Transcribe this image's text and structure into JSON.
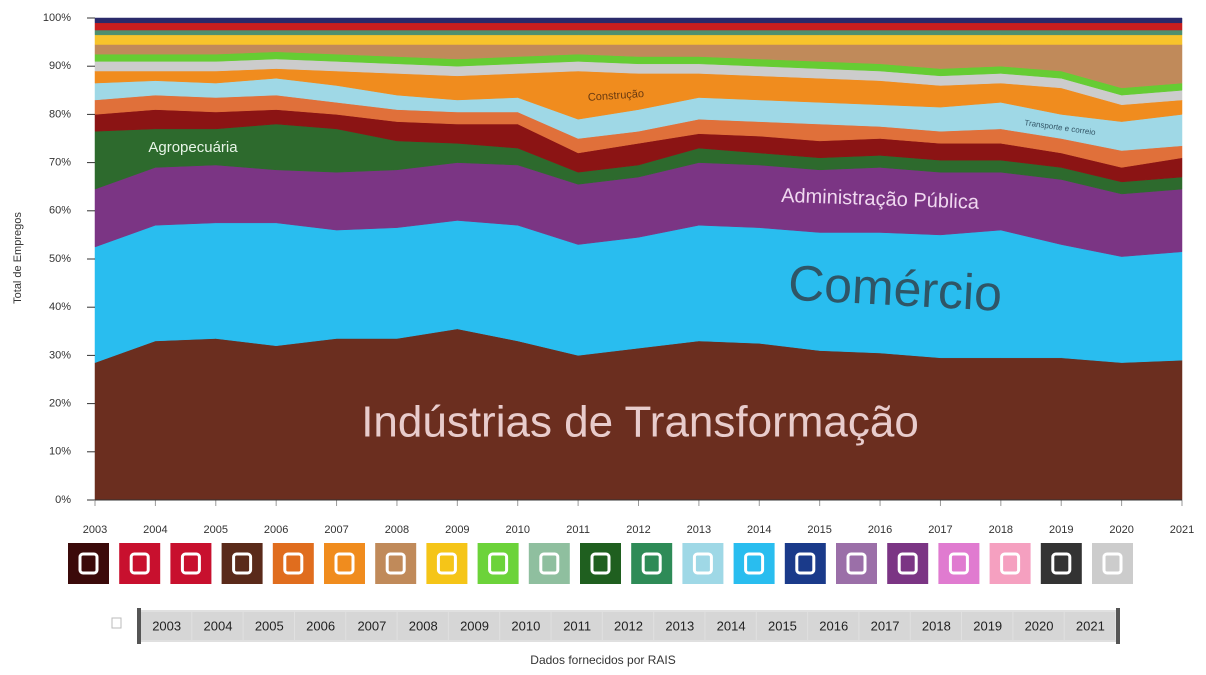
{
  "chart_data": {
    "type": "stacked_area",
    "y_axis_label": "Total de Empregos",
    "source": "Dados fornecidos por RAIS",
    "x": [
      2003,
      2004,
      2005,
      2006,
      2007,
      2008,
      2009,
      2010,
      2011,
      2012,
      2013,
      2014,
      2015,
      2016,
      2017,
      2018,
      2019,
      2020,
      2021
    ],
    "xlim": [
      2003,
      2021
    ],
    "xticks": [
      2003,
      2004,
      2005,
      2006,
      2007,
      2008,
      2009,
      2010,
      2011,
      2012,
      2013,
      2014,
      2015,
      2016,
      2017,
      2018,
      2019,
      2020,
      2021
    ],
    "ylim": [
      0,
      100
    ],
    "yticks": [
      {
        "value": 0,
        "label": "0%"
      },
      {
        "value": 10,
        "label": "10%"
      },
      {
        "value": 20,
        "label": "20%"
      },
      {
        "value": 30,
        "label": "30%"
      },
      {
        "value": 40,
        "label": "40%"
      },
      {
        "value": 50,
        "label": "50%"
      },
      {
        "value": 60,
        "label": "60%"
      },
      {
        "value": 70,
        "label": "70%"
      },
      {
        "value": 80,
        "label": "80%"
      },
      {
        "value": 90,
        "label": "90%"
      },
      {
        "value": 100,
        "label": "100%"
      }
    ],
    "series": [
      {
        "name": "Indústrias de Transformação",
        "color": "#6b2e1f",
        "values": [
          28.5,
          33,
          33.5,
          32,
          33.5,
          33.5,
          35.5,
          33,
          30,
          31.5,
          33,
          32.5,
          31,
          30.5,
          29.5,
          29.5,
          29.5,
          28.5,
          29
        ]
      },
      {
        "name": "Comércio",
        "color": "#29bdef",
        "values": [
          24,
          24,
          24,
          25.5,
          22.5,
          23,
          22.5,
          24,
          23,
          23,
          24,
          24,
          24.5,
          25,
          25.5,
          26.5,
          23.5,
          22,
          22.5
        ]
      },
      {
        "name": "Administração Pública",
        "color": "#7b3584",
        "values": [
          12,
          12,
          12,
          11,
          12,
          12,
          12,
          12.5,
          12.5,
          12.5,
          13,
          13,
          13,
          13.5,
          13,
          12,
          13.5,
          13,
          13
        ]
      },
      {
        "name": "Agropecuária",
        "color": "#2d6a2d",
        "values": [
          12,
          8,
          7.5,
          9.5,
          9,
          6,
          4,
          3.5,
          2.5,
          2.5,
          3,
          2.5,
          2.5,
          2.5,
          2.5,
          2.5,
          2.5,
          2.5,
          2.5
        ]
      },
      {
        "color": "#8b1414",
        "values": [
          3.5,
          4,
          3.5,
          3,
          3,
          4,
          4,
          5,
          4,
          4.5,
          3,
          3.5,
          3.5,
          3.5,
          3.5,
          3.5,
          3,
          3,
          4
        ]
      },
      {
        "color": "#e0703a",
        "values": [
          3,
          3,
          3,
          3,
          2.5,
          2.5,
          2.5,
          2.5,
          3,
          2.5,
          3,
          3,
          3.5,
          2.5,
          2.5,
          3,
          3,
          3.5,
          2.5
        ]
      },
      {
        "name": "Transporte e correio",
        "color": "#9fd8e6",
        "values": [
          3.5,
          3,
          3,
          3.5,
          3.5,
          3,
          2.5,
          3,
          4,
          4.5,
          4.5,
          4.5,
          4.5,
          4.5,
          5,
          5.5,
          5,
          6,
          6.5
        ]
      },
      {
        "name": "Construção",
        "color": "#f08c1e",
        "values": [
          2.5,
          2,
          2.5,
          2,
          3,
          4.5,
          5,
          5,
          10,
          7.5,
          5,
          5,
          5,
          5,
          4.5,
          4,
          5.5,
          3.5,
          3
        ]
      },
      {
        "color": "#cccccc",
        "values": [
          2,
          2,
          2,
          2,
          2,
          2,
          2,
          2,
          2,
          2,
          2,
          2,
          2,
          2,
          2,
          2,
          2,
          2,
          2
        ]
      },
      {
        "color": "#66cc33",
        "values": [
          1.5,
          1.5,
          1.5,
          1.5,
          1.5,
          1.5,
          1.5,
          1.5,
          1.5,
          1.5,
          1.5,
          1.5,
          1.5,
          1.5,
          1.5,
          1.5,
          1.5,
          1.5,
          1.5
        ]
      },
      {
        "color": "#c08a5a",
        "values": [
          2,
          2,
          2,
          1.5,
          2,
          2.5,
          3,
          2.5,
          2,
          2.5,
          2.5,
          3,
          3.5,
          4,
          5,
          4.5,
          5.5,
          9,
          8
        ]
      },
      {
        "color": "#f7c42b",
        "values": [
          2,
          2,
          2,
          2,
          2,
          2,
          2,
          2,
          2,
          2,
          2,
          2,
          2,
          2,
          2,
          2,
          2,
          2,
          2
        ]
      },
      {
        "color": "#4e8f6e",
        "values": [
          1,
          1,
          1,
          1,
          1,
          1,
          1,
          1,
          1,
          1,
          1,
          1,
          1,
          1,
          1,
          1,
          1,
          1,
          1
        ]
      },
      {
        "color": "#c81e1e",
        "values": [
          1.5,
          1.5,
          1.5,
          1.5,
          1.5,
          1.5,
          1.5,
          1.5,
          1.5,
          1.5,
          1.5,
          1.5,
          1.5,
          1.5,
          1.5,
          1.5,
          1.5,
          1.5,
          1.5
        ]
      },
      {
        "color": "#2a2a6a",
        "values": [
          1,
          1,
          1,
          1,
          1,
          1,
          1,
          1,
          1,
          1,
          1,
          1,
          1,
          1,
          1,
          1,
          1,
          1,
          1
        ]
      }
    ]
  }
}
